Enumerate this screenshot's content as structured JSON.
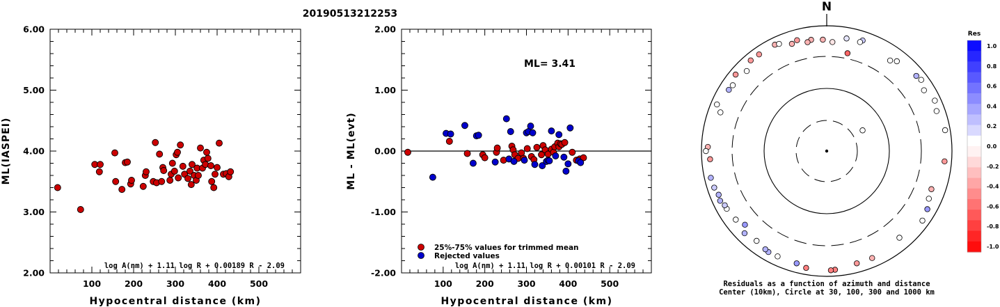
{
  "page_title": "20190513212253",
  "chart_data": [
    {
      "type": "scatter",
      "title": "",
      "xlabel": "Hypocentral distance (km)",
      "ylabel": "ML(IASPEI)",
      "xlim": [
        0,
        600
      ],
      "ylim": [
        2.0,
        6.0
      ],
      "xticks": [
        "100",
        "200",
        "300",
        "400",
        "500"
      ],
      "yticks": [
        "2.00",
        "3.00",
        "4.00",
        "5.00",
        "6.00"
      ],
      "grid": false,
      "formula": "log A(nm) + 1.11 log R + 0.00189 R - 2.09",
      "series": [
        {
          "color": "#cc0000",
          "points": [
            [
              18,
              3.4
            ],
            [
              73,
              3.04
            ],
            [
              107,
              3.78
            ],
            [
              118,
              3.66
            ],
            [
              120,
              3.78
            ],
            [
              155,
              3.97
            ],
            [
              157,
              3.5
            ],
            [
              172,
              3.37
            ],
            [
              180,
              3.81
            ],
            [
              185,
              3.82
            ],
            [
              193,
              3.46
            ],
            [
              195,
              3.52
            ],
            [
              223,
              3.42
            ],
            [
              228,
              3.6
            ],
            [
              230,
              3.66
            ],
            [
              247,
              3.5
            ],
            [
              252,
              4.14
            ],
            [
              255,
              3.48
            ],
            [
              262,
              3.95
            ],
            [
              267,
              3.5
            ],
            [
              270,
              3.73
            ],
            [
              272,
              3.68
            ],
            [
              287,
              3.52
            ],
            [
              290,
              3.62
            ],
            [
              293,
              3.8
            ],
            [
              298,
              3.67
            ],
            [
              302,
              3.94
            ],
            [
              305,
              3.98
            ],
            [
              307,
              3.56
            ],
            [
              312,
              4.1
            ],
            [
              318,
              3.75
            ],
            [
              322,
              3.62
            ],
            [
              330,
              3.55
            ],
            [
              335,
              3.67
            ],
            [
              338,
              3.45
            ],
            [
              340,
              3.78
            ],
            [
              345,
              3.6
            ],
            [
              350,
              3.52
            ],
            [
              352,
              3.72
            ],
            [
              355,
              3.6
            ],
            [
              360,
              4.05
            ],
            [
              365,
              3.72
            ],
            [
              368,
              3.85
            ],
            [
              372,
              3.78
            ],
            [
              375,
              3.98
            ],
            [
              378,
              3.88
            ],
            [
              385,
              3.76
            ],
            [
              387,
              3.5
            ],
            [
              392,
              3.4
            ],
            [
              395,
              3.62
            ],
            [
              400,
              3.73
            ],
            [
              405,
              4.13
            ],
            [
              415,
              3.62
            ],
            [
              422,
              3.63
            ],
            [
              428,
              3.58
            ],
            [
              432,
              3.66
            ]
          ]
        }
      ]
    },
    {
      "type": "scatter",
      "title": "",
      "xlabel": "Hypocentral distance (km)",
      "ylabel": "ML - ML(evt)",
      "xlim": [
        0,
        600
      ],
      "ylim": [
        -2.0,
        2.0
      ],
      "xticks": [
        "100",
        "200",
        "300",
        "400",
        "500"
      ],
      "yticks": [
        "-2.00",
        "-1.00",
        "0.00",
        "1.00",
        "2.00"
      ],
      "grid": false,
      "reference_line": 0.0,
      "annotation": "ML= 3.41",
      "formula": "log A(nm) + 1.11 log R + 0.00101 R - 2.09",
      "legend": {
        "placement": "bottom-left",
        "entries": [
          {
            "label": "25%-75% values for trimmed mean",
            "color": "#cc0000"
          },
          {
            "label": "Rejected values",
            "color": "#0000cc"
          }
        ]
      },
      "series": [
        {
          "name": "25%-75% values for trimmed mean",
          "color": "#cc0000",
          "points": [
            [
              15,
              -0.02
            ],
            [
              115,
              0.16
            ],
            [
              158,
              -0.04
            ],
            [
              195,
              -0.06
            ],
            [
              200,
              -0.11
            ],
            [
              228,
              -0.02
            ],
            [
              230,
              0.05
            ],
            [
              245,
              -0.15
            ],
            [
              265,
              0.08
            ],
            [
              268,
              0.02
            ],
            [
              272,
              -0.06
            ],
            [
              280,
              -0.12
            ],
            [
              288,
              -0.03
            ],
            [
              293,
              -0.12
            ],
            [
              302,
              0.04
            ],
            [
              312,
              -0.09
            ],
            [
              318,
              -0.14
            ],
            [
              325,
              0.06
            ],
            [
              336,
              -0.06
            ],
            [
              340,
              0.09
            ],
            [
              345,
              0.02
            ],
            [
              352,
              -0.05
            ],
            [
              360,
              0.03
            ],
            [
              365,
              -0.02
            ],
            [
              368,
              0.07
            ],
            [
              375,
              0.13
            ],
            [
              378,
              0.07
            ],
            [
              382,
              0.12
            ],
            [
              385,
              0.11
            ],
            [
              392,
              0.14
            ],
            [
              410,
              -0.02
            ],
            [
              420,
              -0.15
            ],
            [
              428,
              -0.13
            ],
            [
              437,
              -0.11
            ]
          ]
        },
        {
          "name": "Rejected values",
          "color": "#0000cc",
          "points": [
            [
              75,
              -0.43
            ],
            [
              107,
              0.29
            ],
            [
              118,
              0.28
            ],
            [
              152,
              0.42
            ],
            [
              172,
              -0.2
            ],
            [
              180,
              0.25
            ],
            [
              185,
              0.26
            ],
            [
              225,
              -0.18
            ],
            [
              252,
              0.53
            ],
            [
              258,
              -0.13
            ],
            [
              262,
              0.32
            ],
            [
              270,
              -0.17
            ],
            [
              295,
              -0.15
            ],
            [
              300,
              0.3
            ],
            [
              305,
              0.32
            ],
            [
              310,
              0.41
            ],
            [
              315,
              0.3
            ],
            [
              320,
              -0.22
            ],
            [
              338,
              -0.24
            ],
            [
              348,
              -0.17
            ],
            [
              352,
              -0.15
            ],
            [
              355,
              -0.16
            ],
            [
              360,
              0.33
            ],
            [
              370,
              -0.08
            ],
            [
              378,
              0.27
            ],
            [
              390,
              -0.1
            ],
            [
              395,
              -0.33
            ],
            [
              400,
              -0.21
            ],
            [
              405,
              0.38
            ],
            [
              425,
              -0.16
            ],
            [
              430,
              -0.19
            ]
          ]
        }
      ]
    },
    {
      "type": "scatter",
      "subtype": "polar",
      "north_label": "N",
      "caption_line1": "Residuals as a function of azimuth and distance",
      "caption_line2": "Center (10km), Circle at 30, 100, 300 and 1000 km",
      "colorbar_title": "Res",
      "colorbar_ticks": [
        "1.0",
        "0.8",
        "0.6",
        "0.4",
        "0.2",
        "0.0",
        "-0.2",
        "-0.4",
        "-0.6",
        "-0.8",
        "-1.0"
      ],
      "points": [
        {
          "az": 12,
          "d": 370,
          "res": -0.6
        },
        {
          "az": 60,
          "d": 45,
          "res": 0.0
        },
        {
          "az": -8,
          "d": 600,
          "res": -0.3
        },
        {
          "az": -2,
          "d": 580,
          "res": -0.3
        },
        {
          "az": 3,
          "d": 530,
          "res": -0.1
        },
        {
          "az": 10,
          "d": 650,
          "res": 0.1
        },
        {
          "az": 18,
          "d": 700,
          "res": 0.2
        },
        {
          "az": 17,
          "d": 640,
          "res": 0.0
        },
        {
          "az": -18,
          "d": 610,
          "res": -0.3
        },
        {
          "az": 35,
          "d": 560,
          "res": 0.0
        },
        {
          "az": 38,
          "d": 640,
          "res": 0.0
        },
        {
          "az": 50,
          "d": 720,
          "res": 0.3
        },
        {
          "az": 53,
          "d": 760,
          "res": 0.0
        },
        {
          "az": 58,
          "d": 660,
          "res": 0.0
        },
        {
          "az": 65,
          "d": 790,
          "res": 0.0
        },
        {
          "az": 70,
          "d": 720,
          "res": 0.0
        },
        {
          "az": 80,
          "d": 820,
          "res": 0.0
        },
        {
          "az": 95,
          "d": 760,
          "res": -0.4
        },
        {
          "az": 110,
          "d": 580,
          "res": -0.3
        },
        {
          "az": 115,
          "d": 610,
          "res": 0.0
        },
        {
          "az": 120,
          "d": 700,
          "res": 0.4
        },
        {
          "az": 126,
          "d": 760,
          "res": 0.0
        },
        {
          "az": 140,
          "d": 620,
          "res": 0.0
        },
        {
          "az": 157,
          "d": 700,
          "res": -0.3
        },
        {
          "az": 165,
          "d": 700,
          "res": -0.4
        },
        {
          "az": 176,
          "d": 780,
          "res": -0.5
        },
        {
          "az": 178,
          "d": 790,
          "res": -0.5
        },
        {
          "az": 190,
          "d": 770,
          "res": -0.5
        },
        {
          "az": 195,
          "d": 700,
          "res": 0.4
        },
        {
          "az": 205,
          "d": 700,
          "res": 0.0
        },
        {
          "az": 210,
          "d": 710,
          "res": 0.3
        },
        {
          "az": 212,
          "d": 690,
          "res": 0.3
        },
        {
          "az": 218,
          "d": 640,
          "res": 0.0
        },
        {
          "az": 225,
          "d": 700,
          "res": 0.3
        },
        {
          "az": 228,
          "d": 550,
          "res": 0.4
        },
        {
          "az": 240,
          "d": 680,
          "res": 0.0
        },
        {
          "az": 242,
          "d": 680,
          "res": 0.2
        },
        {
          "az": 245,
          "d": 740,
          "res": 0.3
        },
        {
          "az": 248,
          "d": 710,
          "res": 0.3
        },
        {
          "az": 252,
          "d": 760,
          "res": 0.2
        },
        {
          "az": 257,
          "d": 780,
          "res": 0.3
        },
        {
          "az": 266,
          "d": 720,
          "res": -0.4
        },
        {
          "az": 272,
          "d": 780,
          "res": -0.3
        },
        {
          "az": 290,
          "d": 620,
          "res": 0.0
        },
        {
          "az": 293,
          "d": 790,
          "res": 0.0
        },
        {
          "az": 302,
          "d": 680,
          "res": 0.3
        },
        {
          "az": 305,
          "d": 660,
          "res": 0.0
        },
        {
          "az": 310,
          "d": 780,
          "res": -0.4
        },
        {
          "az": 315,
          "d": 620,
          "res": 0.0
        },
        {
          "az": 320,
          "d": 760,
          "res": -0.4
        },
        {
          "az": 325,
          "d": 750,
          "res": -0.4
        },
        {
          "az": 334,
          "d": 760,
          "res": -0.3
        },
        {
          "az": 336,
          "d": 730,
          "res": 0.0
        },
        {
          "az": 345,
          "d": 660,
          "res": -0.4
        },
        {
          "az": 350,
          "d": 560,
          "res": -0.3
        },
        {
          "az": 270,
          "d": 840,
          "res": 0.0
        },
        {
          "az": 233,
          "d": 640,
          "res": 0.0
        }
      ]
    }
  ]
}
